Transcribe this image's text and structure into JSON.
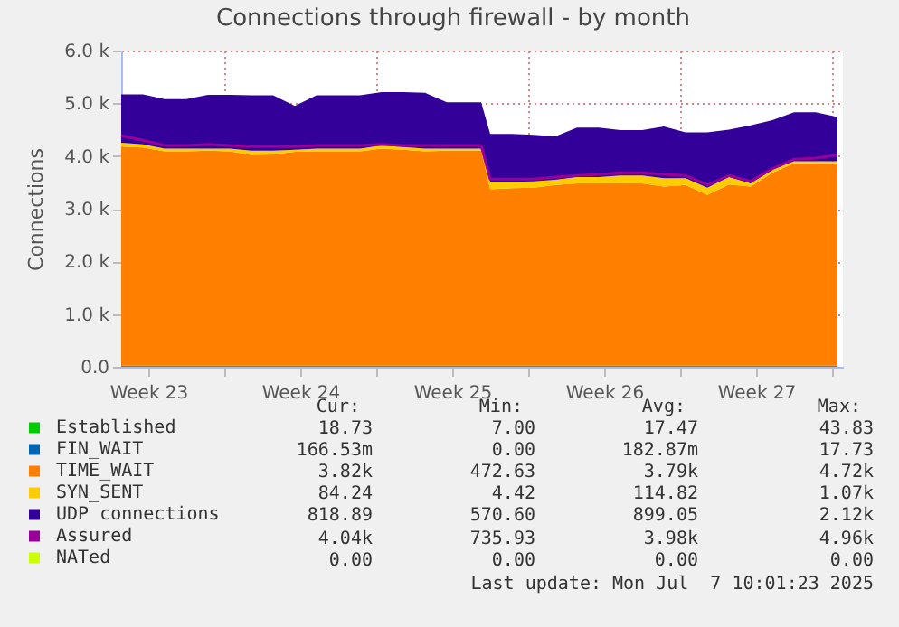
{
  "chart_data": {
    "type": "area",
    "title": "Connections through firewall - by month",
    "ylabel": "Connections",
    "stacked": true,
    "legend": "bottom",
    "grid": true,
    "x": [
      "2025-06-04T06:00",
      "2025-06-05T06:00",
      "2025-06-06T06:00",
      "2025-06-07T06:00",
      "2025-06-08T06:00",
      "2025-06-09T06:00",
      "2025-06-10T06:00",
      "2025-06-11T06:00",
      "2025-06-12T06:00",
      "2025-06-13T06:00",
      "2025-06-14T06:00",
      "2025-06-15T06:00",
      "2025-06-16T06:00",
      "2025-06-17T06:00",
      "2025-06-18T06:00",
      "2025-06-19T06:00",
      "2025-06-20T06:00",
      "2025-06-20T20:00",
      "2025-06-21T06:00",
      "2025-06-22T06:00",
      "2025-06-23T06:00",
      "2025-06-24T06:00",
      "2025-06-25T06:00",
      "2025-06-26T06:00",
      "2025-06-27T06:00",
      "2025-06-28T06:00",
      "2025-06-29T06:00",
      "2025-06-30T06:00",
      "2025-07-01T06:00",
      "2025-07-02T06:00",
      "2025-07-03T06:00",
      "2025-07-04T06:00",
      "2025-07-05T06:00",
      "2025-07-06T06:00",
      "2025-07-07T06:00"
    ],
    "xlim": [
      "2025-06-04T06:00",
      "2025-07-07T12:00"
    ],
    "xticks": [
      {
        "value": "2025-06-05T12:00",
        "label": "Week 23"
      },
      {
        "value": "2025-06-09T00:00",
        "label": null
      },
      {
        "value": "2025-06-12T12:00",
        "label": "Week 24"
      },
      {
        "value": "2025-06-16T00:00",
        "label": null
      },
      {
        "value": "2025-06-19T12:00",
        "label": "Week 25"
      },
      {
        "value": "2025-06-23T00:00",
        "label": null
      },
      {
        "value": "2025-06-26T12:00",
        "label": "Week 26"
      },
      {
        "value": "2025-06-30T00:00",
        "label": null
      },
      {
        "value": "2025-07-03T12:00",
        "label": "Week 27"
      },
      {
        "value": "2025-07-07T00:00",
        "label": null
      }
    ],
    "ylim": [
      0,
      6000
    ],
    "yticks": [
      {
        "value": 0,
        "label": "0.0"
      },
      {
        "value": 1000,
        "label": "1.0 k"
      },
      {
        "value": 2000,
        "label": "2.0 k"
      },
      {
        "value": 3000,
        "label": "3.0 k"
      },
      {
        "value": 4000,
        "label": "4.0 k"
      },
      {
        "value": 5000,
        "label": "5.0 k"
      },
      {
        "value": 6000,
        "label": "6.0 k"
      }
    ],
    "series": [
      {
        "name": "Established",
        "color": "#00cc00",
        "values": [
          20,
          20,
          20,
          20,
          20,
          20,
          20,
          20,
          20,
          20,
          20,
          20,
          20,
          20,
          20,
          20,
          20,
          20,
          20,
          20,
          20,
          20,
          20,
          20,
          20,
          20,
          20,
          20,
          20,
          20,
          20,
          20,
          20,
          20,
          20
        ]
      },
      {
        "name": "FIN_WAIT",
        "color": "#0066b3",
        "values": [
          null,
          null,
          null,
          null,
          null,
          null,
          null,
          null,
          null,
          null,
          null,
          null,
          null,
          null,
          null,
          null,
          null,
          null,
          null,
          null,
          null,
          null,
          null,
          null,
          null,
          null,
          null,
          null,
          null,
          null,
          null,
          null,
          null,
          null,
          null
        ]
      },
      {
        "name": "TIME_WAIT",
        "color": "#ff8000",
        "values": [
          4160,
          4140,
          4070,
          4070,
          4080,
          4070,
          4000,
          4010,
          4060,
          4070,
          4070,
          4070,
          4120,
          4100,
          4070,
          4080,
          4080,
          4080,
          3350,
          3370,
          3380,
          3430,
          3460,
          3460,
          3460,
          3460,
          3400,
          3430,
          3240,
          3440,
          3400,
          3660,
          3840,
          3840,
          3840
        ]
      },
      {
        "name": "SYN_SENT",
        "color": "#ffcc00",
        "values": [
          70,
          60,
          50,
          50,
          40,
          50,
          80,
          70,
          40,
          50,
          50,
          50,
          60,
          50,
          50,
          40,
          40,
          40,
          140,
          120,
          120,
          100,
          120,
          120,
          150,
          150,
          160,
          130,
          140,
          140,
          60,
          60,
          40,
          40,
          40
        ]
      },
      {
        "name": "UDP connections",
        "color": "#330099",
        "values": [
          920,
          950,
          940,
          940,
          1020,
          1020,
          1050,
          1050,
          830,
          1010,
          1010,
          1010,
          1010,
          1040,
          1060,
          880,
          880,
          880,
          910,
          910,
          880,
          820,
          940,
          940,
          860,
          860,
          980,
          870,
          1050,
          900,
          1100,
          940,
          930,
          930,
          840
        ]
      },
      {
        "name": "Assured",
        "color": "#990099",
        "type": "line",
        "values": [
          4390,
          4300,
          4200,
          4200,
          4220,
          4200,
          4180,
          4180,
          4180,
          4200,
          4200,
          4200,
          4220,
          4200,
          4200,
          4200,
          4200,
          4200,
          3560,
          3560,
          3560,
          3600,
          3630,
          3650,
          3680,
          3680,
          3650,
          3630,
          3450,
          3630,
          3520,
          3760,
          3940,
          3960,
          4020
        ]
      },
      {
        "name": "NATed",
        "color": "#ccff00",
        "values": [
          null,
          null,
          null,
          null,
          null,
          null,
          null,
          null,
          null,
          null,
          null,
          null,
          null,
          null,
          null,
          null,
          null,
          null,
          null,
          null,
          null,
          null,
          null,
          null,
          null,
          null,
          null,
          null,
          null,
          null,
          null,
          null,
          null,
          null,
          null
        ]
      }
    ],
    "annotations": [
      "Cur:",
      "Min:",
      "Avg:",
      "Max:",
      "18.73",
      "7.00",
      "17.47",
      "43.83",
      "166.53m",
      "0.00",
      "182.87m",
      "17.73",
      "3.82k",
      "472.63",
      "3.79k",
      "4.72k",
      "84.24",
      "4.42",
      "114.82",
      "1.07k",
      "818.89",
      "570.60",
      "899.05",
      "2.12k",
      "4.04k",
      "735.93",
      "3.98k",
      "4.96k",
      "0.00",
      "0.00",
      "0.00",
      "0.00",
      "Last update: Mon Jul  7 10:01:23 2025"
    ]
  }
}
